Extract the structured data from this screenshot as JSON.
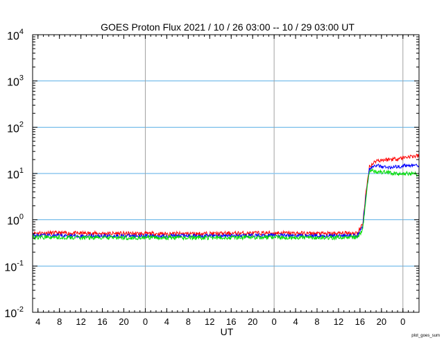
{
  "chart_data": {
    "type": "line",
    "title": "GOES Proton Flux   2021 / 10 / 26   03:00 -- 10 / 29   03:00   UT",
    "xlabel": "UT",
    "ylabel": "",
    "yscale": "log",
    "ylim": [
      0.01,
      10000
    ],
    "y_tick_labels": [
      {
        "base": "10",
        "exp": "4"
      },
      {
        "base": "10",
        "exp": "3"
      },
      {
        "base": "10",
        "exp": "2"
      },
      {
        "base": "10",
        "exp": "1"
      },
      {
        "base": "10",
        "exp": "0"
      },
      {
        "base": "10",
        "exp": "-1"
      },
      {
        "base": "10",
        "exp": "-2"
      }
    ],
    "x_range_hours": [
      "2021-10-26 03:00",
      "2021-10-29 03:00"
    ],
    "x_tick_labels": [
      "4",
      "8",
      "12",
      "16",
      "20",
      "0",
      "4",
      "8",
      "12",
      "16",
      "20",
      "0",
      "4",
      "8",
      "12",
      "16",
      "20",
      "0"
    ],
    "day_boundaries": [
      "2021-10-27 00:00",
      "2021-10-28 00:00",
      "2021-10-29 00:00"
    ],
    "threshold": {
      "value": 10,
      "style": "dashed",
      "color": "#8ec8f0"
    },
    "grid": {
      "horizontal": true,
      "vertical_day_lines": true
    },
    "colors": {
      "grid_h": "#5aaee6",
      "grid_v": "#a0a0a0",
      "axis": "#000000"
    },
    "series": [
      {
        "color": "#ff0000",
        "points": [
          [
            "2021-10-26 03:00",
            0.52
          ],
          [
            "2021-10-26 12:00",
            0.51
          ],
          [
            "2021-10-27 00:00",
            0.5
          ],
          [
            "2021-10-27 12:00",
            0.5
          ],
          [
            "2021-10-28 00:00",
            0.52
          ],
          [
            "2021-10-28 10:00",
            0.5
          ],
          [
            "2021-10-28 15:30",
            0.52
          ],
          [
            "2021-10-28 16:30",
            0.8
          ],
          [
            "2021-10-28 17:00",
            3.0
          ],
          [
            "2021-10-28 17:45",
            14
          ],
          [
            "2021-10-28 19:00",
            19
          ],
          [
            "2021-10-28 21:00",
            20
          ],
          [
            "2021-10-28 23:00",
            21
          ],
          [
            "2021-10-29 01:00",
            23
          ],
          [
            "2021-10-29 03:00",
            24
          ]
        ]
      },
      {
        "color": "#0000ff",
        "points": [
          [
            "2021-10-26 03:00",
            0.46
          ],
          [
            "2021-10-26 12:00",
            0.45
          ],
          [
            "2021-10-27 00:00",
            0.45
          ],
          [
            "2021-10-27 12:00",
            0.45
          ],
          [
            "2021-10-28 00:00",
            0.46
          ],
          [
            "2021-10-28 10:00",
            0.45
          ],
          [
            "2021-10-28 15:30",
            0.46
          ],
          [
            "2021-10-28 16:30",
            0.7
          ],
          [
            "2021-10-28 17:00",
            2.6
          ],
          [
            "2021-10-28 17:45",
            12.5
          ],
          [
            "2021-10-28 19:00",
            15
          ],
          [
            "2021-10-28 21:00",
            13.5
          ],
          [
            "2021-10-28 23:00",
            14
          ],
          [
            "2021-10-29 01:00",
            15
          ],
          [
            "2021-10-29 03:00",
            14.5
          ]
        ]
      },
      {
        "color": "#00dd00",
        "points": [
          [
            "2021-10-26 03:00",
            0.42
          ],
          [
            "2021-10-26 12:00",
            0.41
          ],
          [
            "2021-10-27 00:00",
            0.41
          ],
          [
            "2021-10-27 12:00",
            0.41
          ],
          [
            "2021-10-28 00:00",
            0.42
          ],
          [
            "2021-10-28 10:00",
            0.41
          ],
          [
            "2021-10-28 15:30",
            0.42
          ],
          [
            "2021-10-28 16:30",
            0.6
          ],
          [
            "2021-10-28 17:00",
            2.2
          ],
          [
            "2021-10-28 17:45",
            11.5
          ],
          [
            "2021-10-28 19:00",
            11
          ],
          [
            "2021-10-28 21:00",
            10.5
          ],
          [
            "2021-10-28 23:00",
            9.8
          ],
          [
            "2021-10-29 01:00",
            10
          ],
          [
            "2021-10-29 03:00",
            9.6
          ]
        ]
      }
    ]
  },
  "credit": "plot_goes_sum"
}
